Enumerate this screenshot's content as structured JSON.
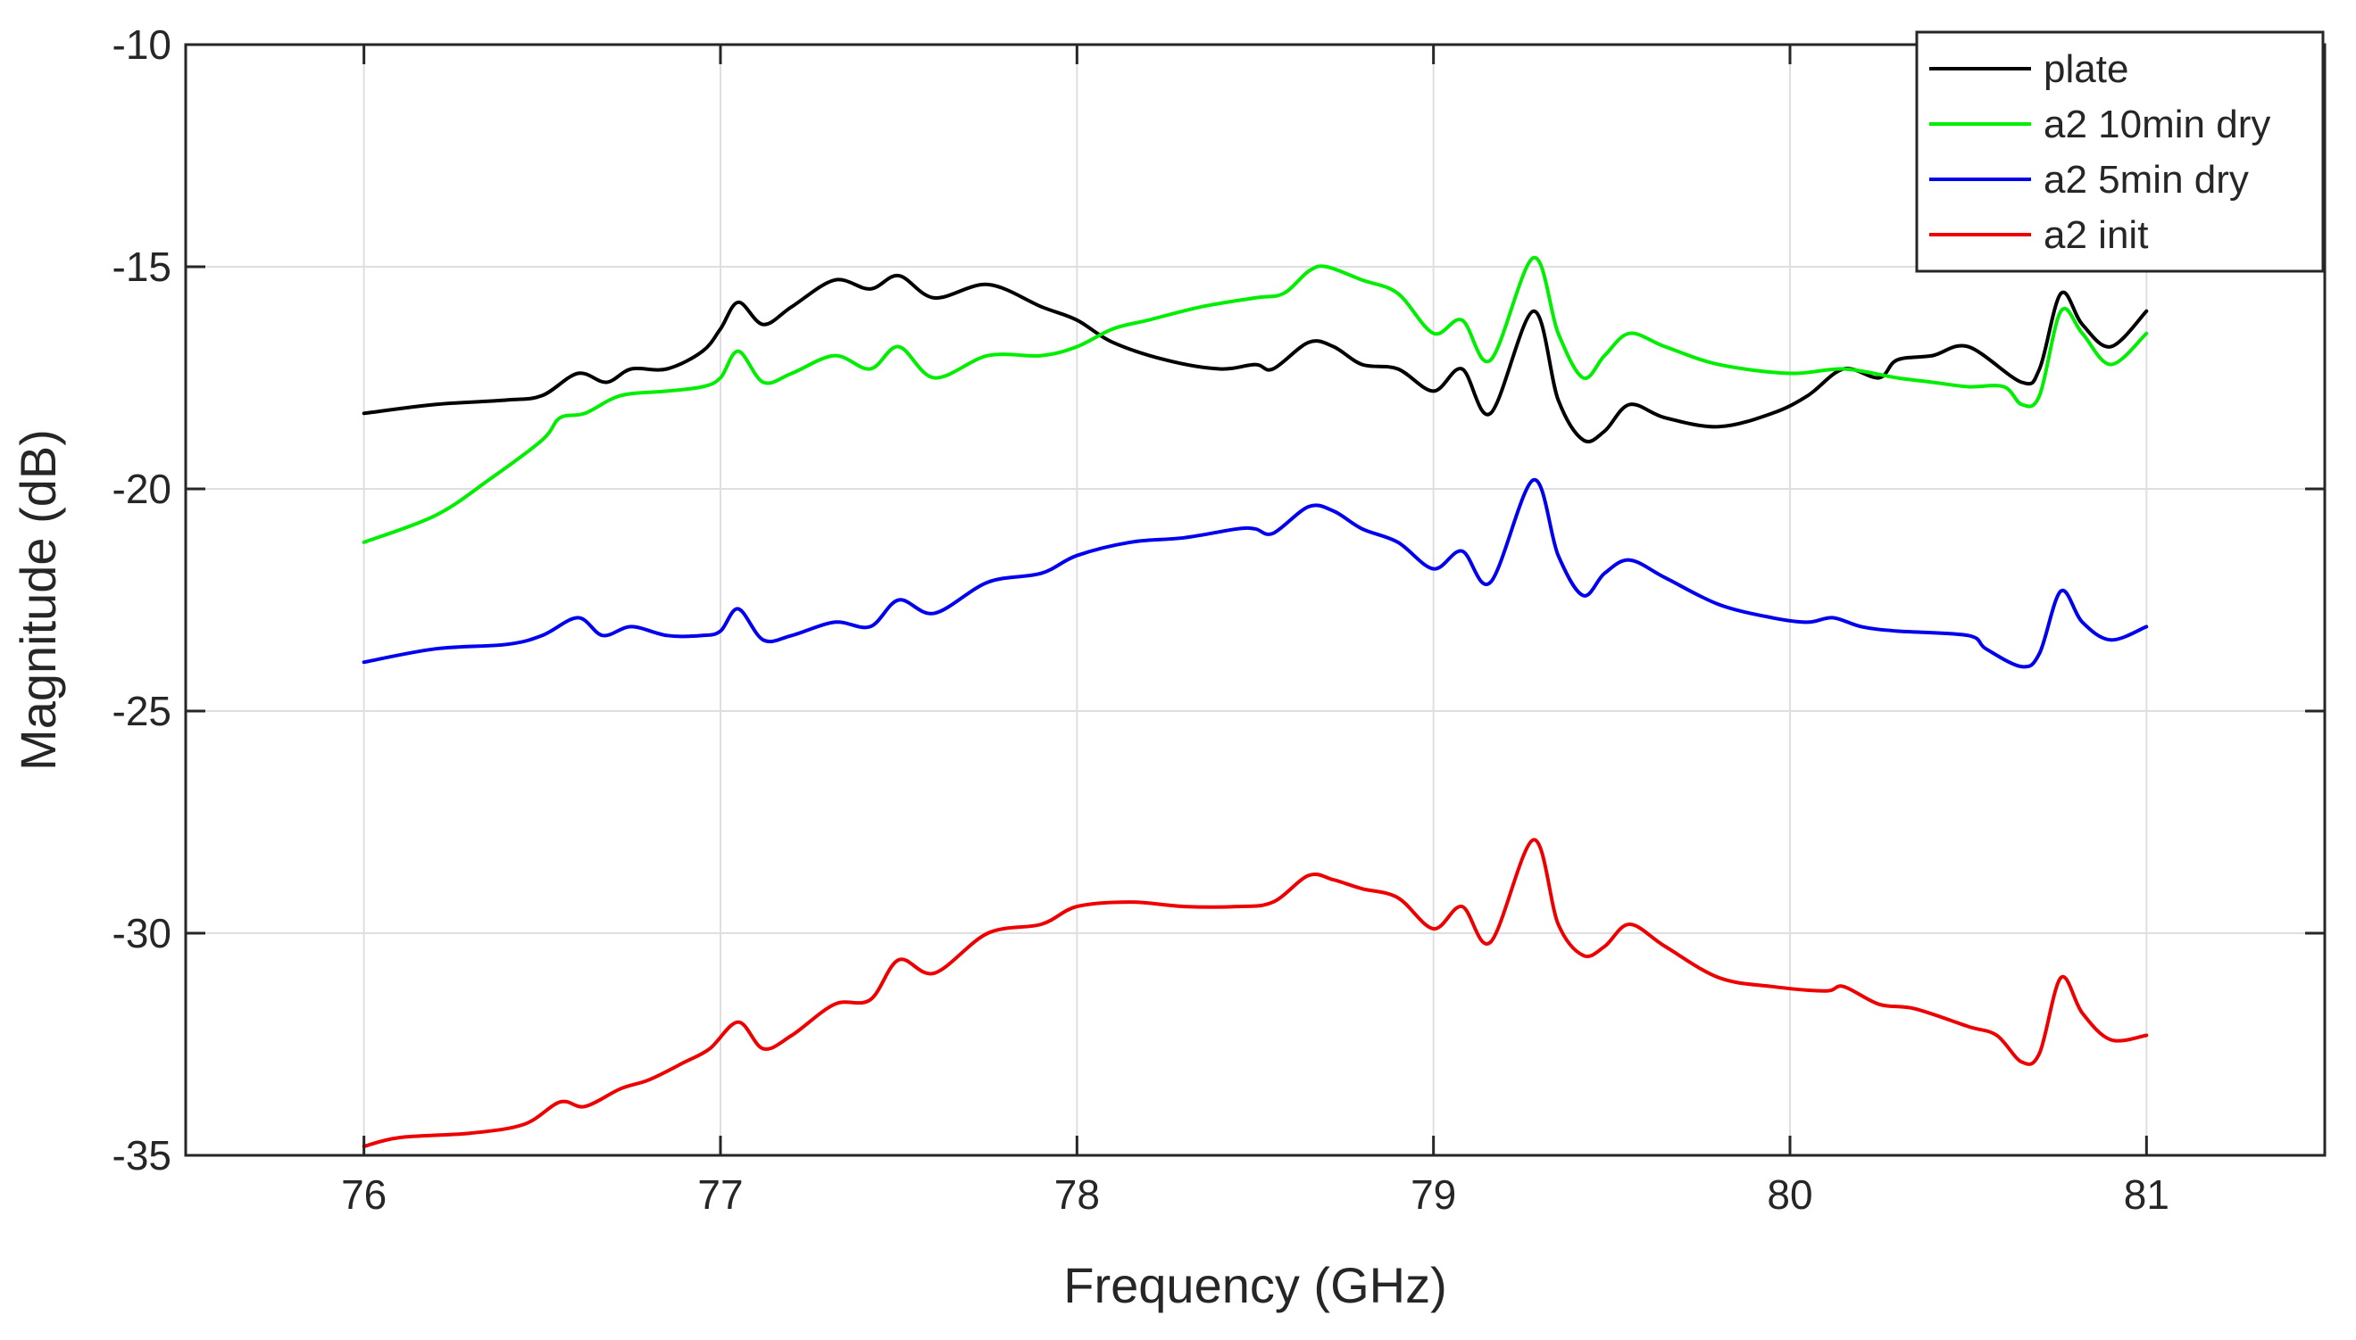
{
  "chart_data": {
    "type": "line",
    "title": "",
    "xlabel": "Frequency (GHz)",
    "ylabel": "Magnitude (dB)",
    "xlim": [
      75.5,
      81.5
    ],
    "ylim": [
      -35,
      -10
    ],
    "xticks": [
      76,
      77,
      78,
      79,
      80,
      81
    ],
    "yticks": [
      -35,
      -30,
      -25,
      -20,
      -15,
      -10
    ],
    "grid": true,
    "legend_position": "top-right",
    "series": [
      {
        "name": "plate",
        "color": "#000000",
        "x": [
          76.0,
          76.2,
          76.4,
          76.5,
          76.6,
          76.68,
          76.75,
          76.85,
          76.95,
          77.0,
          77.05,
          77.12,
          77.2,
          77.32,
          77.42,
          77.5,
          77.6,
          77.75,
          77.9,
          78.0,
          78.1,
          78.25,
          78.4,
          78.5,
          78.55,
          78.65,
          78.72,
          78.8,
          78.9,
          79.0,
          79.08,
          79.16,
          79.28,
          79.35,
          79.42,
          79.48,
          79.55,
          79.65,
          79.8,
          79.95,
          80.05,
          80.15,
          80.25,
          80.3,
          80.4,
          80.5,
          80.65,
          80.7,
          80.76,
          80.82,
          80.9,
          81.0
        ],
        "y": [
          -18.3,
          -18.1,
          -18.0,
          -17.9,
          -17.4,
          -17.6,
          -17.3,
          -17.3,
          -16.9,
          -16.4,
          -15.8,
          -16.3,
          -15.9,
          -15.3,
          -15.5,
          -15.2,
          -15.7,
          -15.4,
          -15.9,
          -16.2,
          -16.7,
          -17.1,
          -17.3,
          -17.2,
          -17.3,
          -16.7,
          -16.8,
          -17.2,
          -17.3,
          -17.8,
          -17.3,
          -18.3,
          -16.0,
          -18.0,
          -18.9,
          -18.7,
          -18.1,
          -18.4,
          -18.6,
          -18.3,
          -17.9,
          -17.3,
          -17.5,
          -17.1,
          -17.0,
          -16.8,
          -17.6,
          -17.3,
          -15.6,
          -16.3,
          -16.8,
          -16.0
        ]
      },
      {
        "name": "a2 10min dry",
        "color": "#00ee00",
        "x": [
          76.0,
          76.2,
          76.35,
          76.5,
          76.55,
          76.62,
          76.72,
          76.85,
          76.95,
          77.0,
          77.05,
          77.12,
          77.2,
          77.32,
          77.42,
          77.5,
          77.6,
          77.75,
          77.9,
          78.0,
          78.1,
          78.2,
          78.35,
          78.5,
          78.58,
          78.65,
          78.7,
          78.8,
          78.9,
          79.0,
          79.08,
          79.16,
          79.28,
          79.35,
          79.42,
          79.48,
          79.55,
          79.65,
          79.8,
          80.0,
          80.15,
          80.3,
          80.4,
          80.5,
          80.6,
          80.65,
          80.7,
          80.76,
          80.82,
          80.9,
          81.0
        ],
        "y": [
          -21.2,
          -20.6,
          -19.8,
          -18.9,
          -18.4,
          -18.3,
          -17.9,
          -17.8,
          -17.7,
          -17.5,
          -16.9,
          -17.6,
          -17.4,
          -17.0,
          -17.3,
          -16.8,
          -17.5,
          -17.0,
          -17.0,
          -16.8,
          -16.4,
          -16.2,
          -15.9,
          -15.7,
          -15.6,
          -15.1,
          -15.0,
          -15.3,
          -15.6,
          -16.5,
          -16.2,
          -17.1,
          -14.8,
          -16.5,
          -17.5,
          -17.0,
          -16.5,
          -16.8,
          -17.2,
          -17.4,
          -17.3,
          -17.5,
          -17.6,
          -17.7,
          -17.7,
          -18.1,
          -17.9,
          -16.0,
          -16.5,
          -17.2,
          -16.5
        ]
      },
      {
        "name": "a2 5min dry",
        "color": "#0000ee",
        "x": [
          76.0,
          76.2,
          76.4,
          76.5,
          76.6,
          76.67,
          76.75,
          76.85,
          76.95,
          77.0,
          77.05,
          77.12,
          77.2,
          77.32,
          77.42,
          77.5,
          77.6,
          77.75,
          77.9,
          78.0,
          78.15,
          78.3,
          78.45,
          78.5,
          78.55,
          78.65,
          78.72,
          78.8,
          78.9,
          79.0,
          79.08,
          79.16,
          79.28,
          79.35,
          79.42,
          79.48,
          79.55,
          79.65,
          79.8,
          79.95,
          80.05,
          80.12,
          80.2,
          80.3,
          80.5,
          80.55,
          80.65,
          80.7,
          80.76,
          80.82,
          80.9,
          81.0
        ],
        "y": [
          -23.9,
          -23.6,
          -23.5,
          -23.3,
          -22.9,
          -23.3,
          -23.1,
          -23.3,
          -23.3,
          -23.2,
          -22.7,
          -23.4,
          -23.3,
          -23.0,
          -23.1,
          -22.5,
          -22.8,
          -22.1,
          -21.9,
          -21.5,
          -21.2,
          -21.1,
          -20.9,
          -20.9,
          -21.0,
          -20.4,
          -20.5,
          -20.9,
          -21.2,
          -21.8,
          -21.4,
          -22.1,
          -19.8,
          -21.5,
          -22.4,
          -21.9,
          -21.6,
          -22.0,
          -22.6,
          -22.9,
          -23.0,
          -22.9,
          -23.1,
          -23.2,
          -23.3,
          -23.6,
          -24.0,
          -23.7,
          -22.3,
          -23.0,
          -23.4,
          -23.1
        ]
      },
      {
        "name": "a2 init",
        "color": "#ee0000",
        "x": [
          76.0,
          76.1,
          76.3,
          76.45,
          76.55,
          76.62,
          76.72,
          76.8,
          76.9,
          76.97,
          77.05,
          77.12,
          77.2,
          77.32,
          77.42,
          77.5,
          77.6,
          77.75,
          77.9,
          78.0,
          78.15,
          78.3,
          78.45,
          78.55,
          78.65,
          78.72,
          78.8,
          78.9,
          79.0,
          79.08,
          79.16,
          79.28,
          79.35,
          79.42,
          79.48,
          79.55,
          79.65,
          79.8,
          79.95,
          80.1,
          80.15,
          80.25,
          80.35,
          80.5,
          80.58,
          80.65,
          80.7,
          80.76,
          80.82,
          80.9,
          81.0
        ],
        "y": [
          -34.8,
          -34.6,
          -34.5,
          -34.3,
          -33.8,
          -33.9,
          -33.5,
          -33.3,
          -32.9,
          -32.6,
          -32.0,
          -32.6,
          -32.3,
          -31.6,
          -31.5,
          -30.6,
          -30.9,
          -30.0,
          -29.8,
          -29.4,
          -29.3,
          -29.4,
          -29.4,
          -29.3,
          -28.7,
          -28.8,
          -29.0,
          -29.2,
          -29.9,
          -29.4,
          -30.2,
          -27.9,
          -29.8,
          -30.5,
          -30.3,
          -29.8,
          -30.3,
          -31.0,
          -31.2,
          -31.3,
          -31.2,
          -31.6,
          -31.7,
          -32.1,
          -32.3,
          -32.9,
          -32.7,
          -31.0,
          -31.8,
          -32.4,
          -32.3
        ]
      }
    ]
  }
}
